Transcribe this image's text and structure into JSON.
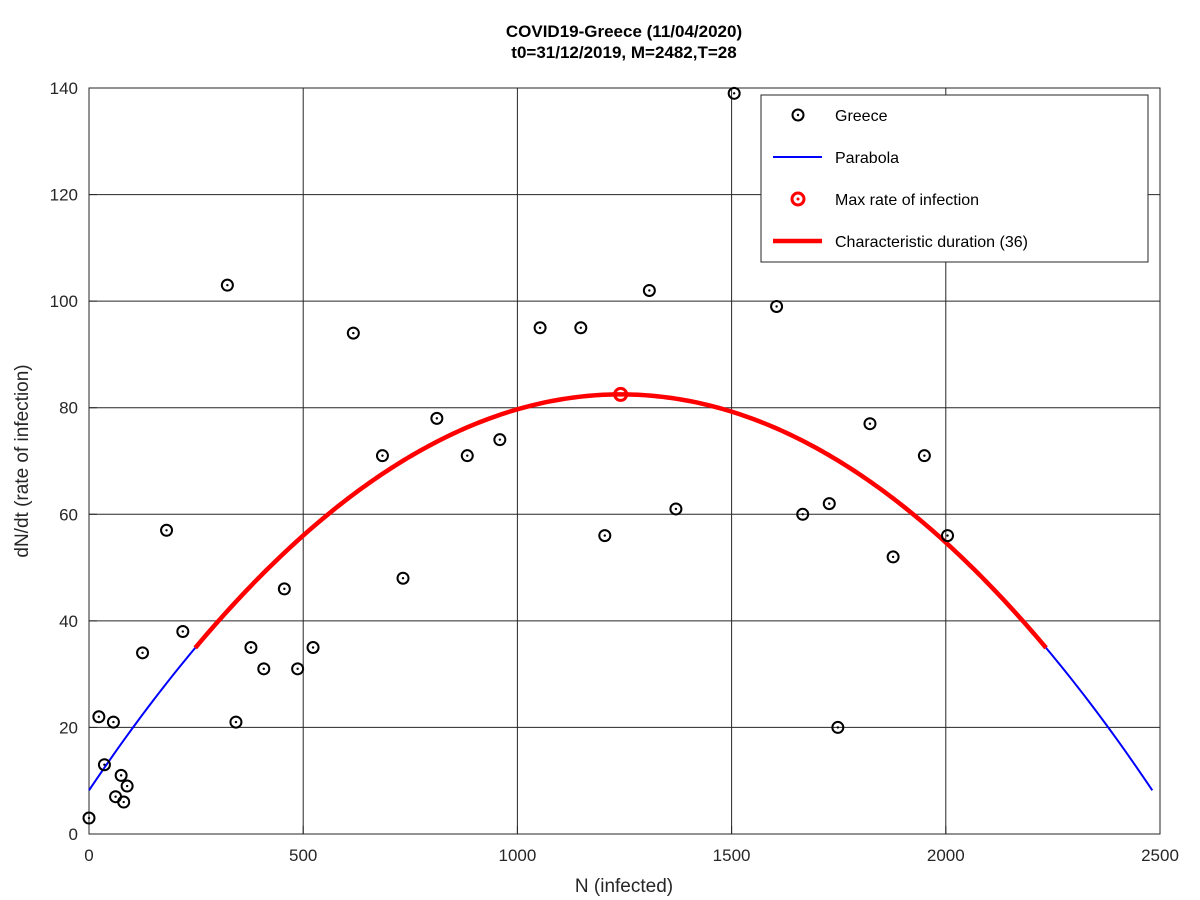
{
  "chart_data": {
    "type": "scatter",
    "title": "COVID19-Greece (11/04/2020)",
    "subtitle": "t0=31/12/2019, M=2482,T=28",
    "xlabel": "N (infected)",
    "ylabel": "dN/dt (rate of infection)",
    "xlim": [
      0,
      2500
    ],
    "ylim": [
      0,
      140
    ],
    "xticks": [
      0,
      500,
      1000,
      1500,
      2000,
      2500
    ],
    "yticks": [
      0,
      20,
      40,
      60,
      80,
      100,
      120,
      140
    ],
    "grid": true,
    "legend_position": "top-right",
    "colors": {
      "points": "#000000",
      "parabola": "#0000ff",
      "max": "#ff0000",
      "duration": "#ff0000"
    },
    "series": [
      {
        "name": "Greece",
        "type": "scatter",
        "marker": "circle-dot",
        "x": [
          0,
          23,
          36,
          57,
          62,
          75,
          81,
          89,
          125,
          181,
          219,
          323,
          343,
          378,
          408,
          456,
          487,
          523,
          617,
          685,
          733,
          812,
          883,
          959,
          1053,
          1148,
          1204,
          1308,
          1370,
          1506,
          1605,
          1666,
          1728,
          1748,
          1823,
          1877,
          1950,
          2004
        ],
        "y": [
          3,
          22,
          13,
          21,
          7,
          11,
          6,
          9,
          34,
          57,
          38,
          103,
          21,
          35,
          31,
          46,
          31,
          35,
          94,
          71,
          48,
          78,
          71,
          74,
          95,
          95,
          56,
          102,
          61,
          139,
          99,
          60,
          62,
          20,
          77,
          52,
          71,
          56
        ]
      },
      {
        "name": "Parabola",
        "type": "line",
        "equation": "y = 4*82.5*x*(2482-x)/2482^2 + 8.2*(1 - 4*x*(2482-x)/2482^2)",
        "x_range": [
          0,
          2482
        ],
        "y_at_ends": 8.2,
        "y_max": 82.5
      },
      {
        "name": "Max rate of infection",
        "type": "scatter",
        "marker": "circle-dot",
        "x": [
          1241
        ],
        "y": [
          82.5
        ]
      },
      {
        "name": "Characteristic duration (36)",
        "type": "line",
        "x_range": [
          248,
          2234
        ]
      }
    ]
  }
}
